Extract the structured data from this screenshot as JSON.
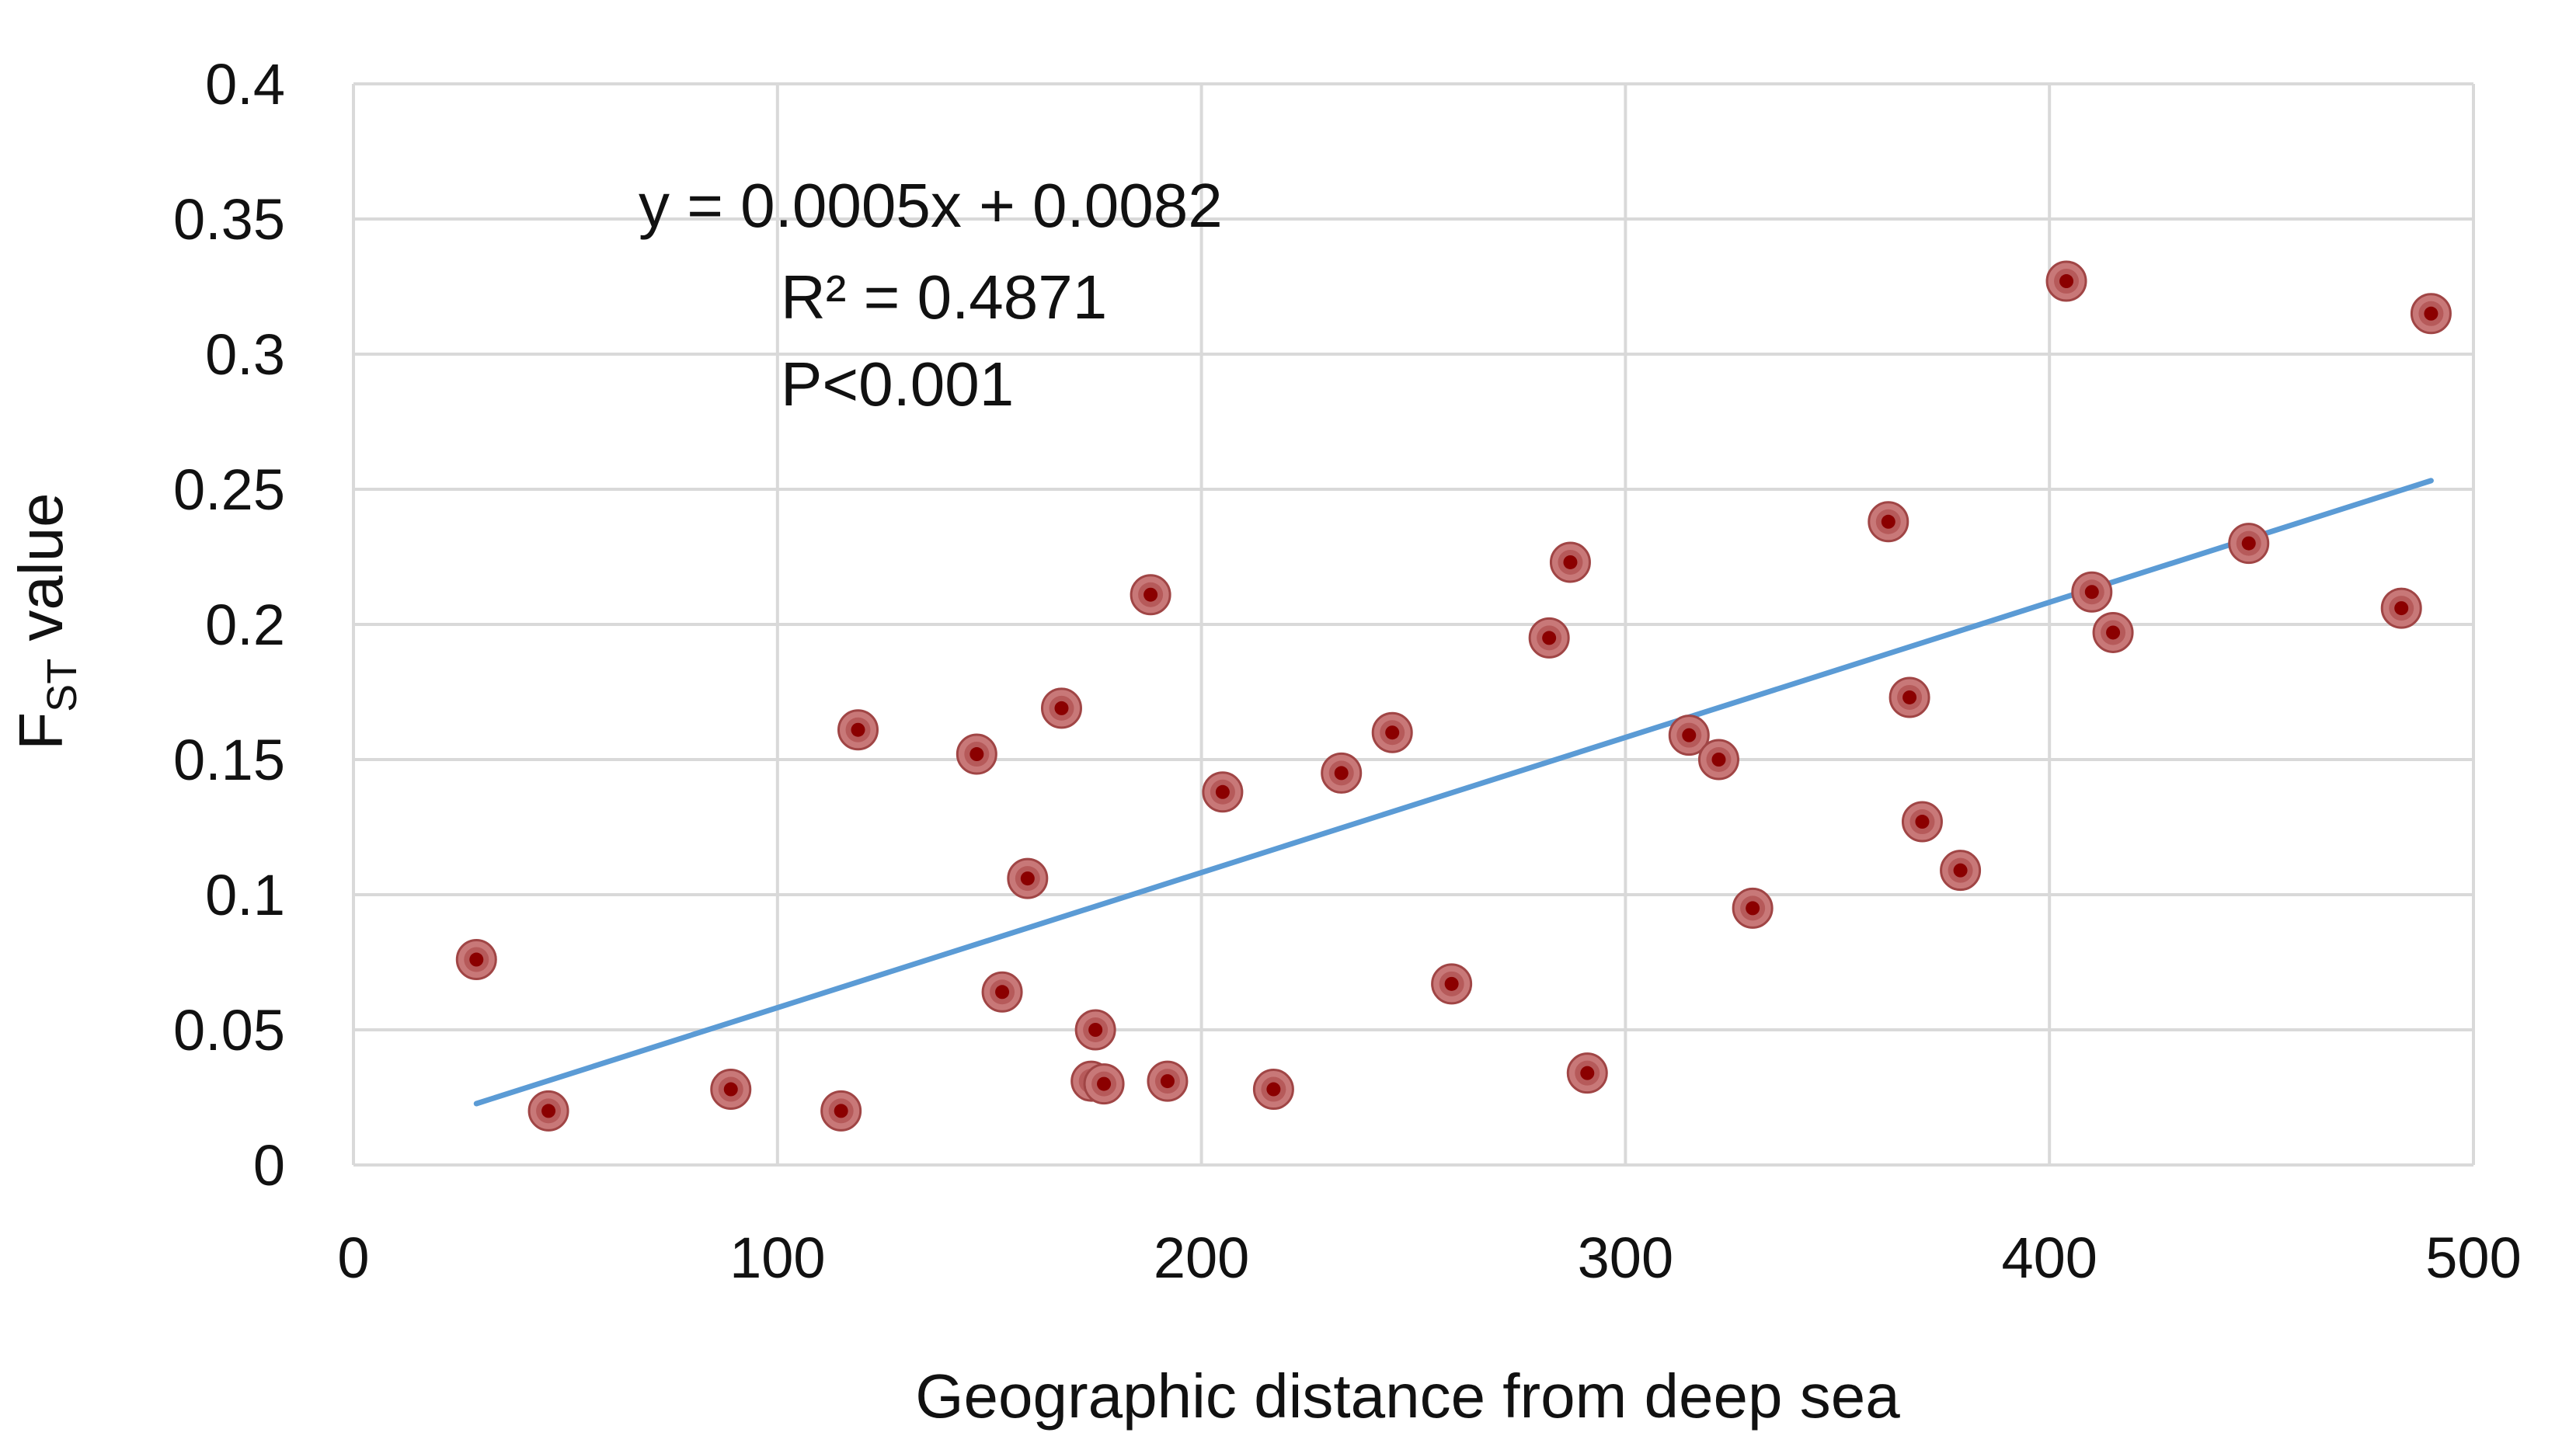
{
  "chart_data": {
    "type": "scatter",
    "xlabel": "Geographic distance from deep sea",
    "ylabel": {
      "main": "F",
      "subscript": "ST",
      "suffix": " value"
    },
    "xlim": [
      0,
      500
    ],
    "ylim": [
      0,
      0.4
    ],
    "x_ticks": [
      "0",
      "100",
      "200",
      "300",
      "400",
      "500"
    ],
    "y_ticks": [
      "0",
      "0.05",
      "0.1",
      "0.15",
      "0.2",
      "0.25",
      "0.3",
      "0.35",
      "0.4"
    ],
    "grid": true,
    "legend": "none",
    "marker_color": "#8b0000",
    "marker_halo_color": "#c87878",
    "trendline_color": "#5b9bd5",
    "trendline": {
      "slope": 0.0005,
      "intercept": 0.0082,
      "x_range": [
        29,
        490
      ]
    },
    "annotations": {
      "equation": "y = 0.0005x + 0.0082",
      "r_squared": "R² = 0.4871",
      "p_value": "P<0.001"
    },
    "points": [
      {
        "x": 29,
        "y": 0.076
      },
      {
        "x": 46,
        "y": 0.02
      },
      {
        "x": 89,
        "y": 0.028
      },
      {
        "x": 115,
        "y": 0.02
      },
      {
        "x": 119,
        "y": 0.161
      },
      {
        "x": 147,
        "y": 0.152
      },
      {
        "x": 153,
        "y": 0.064
      },
      {
        "x": 159,
        "y": 0.106
      },
      {
        "x": 167,
        "y": 0.169
      },
      {
        "x": 174,
        "y": 0.031
      },
      {
        "x": 175,
        "y": 0.05
      },
      {
        "x": 177,
        "y": 0.03
      },
      {
        "x": 188,
        "y": 0.211
      },
      {
        "x": 192,
        "y": 0.031
      },
      {
        "x": 205,
        "y": 0.138
      },
      {
        "x": 217,
        "y": 0.028
      },
      {
        "x": 233,
        "y": 0.145
      },
      {
        "x": 245,
        "y": 0.16
      },
      {
        "x": 259,
        "y": 0.067
      },
      {
        "x": 282,
        "y": 0.195
      },
      {
        "x": 287,
        "y": 0.223
      },
      {
        "x": 291,
        "y": 0.034
      },
      {
        "x": 315,
        "y": 0.159
      },
      {
        "x": 322,
        "y": 0.15
      },
      {
        "x": 330,
        "y": 0.095
      },
      {
        "x": 362,
        "y": 0.238
      },
      {
        "x": 367,
        "y": 0.173
      },
      {
        "x": 370,
        "y": 0.127
      },
      {
        "x": 379,
        "y": 0.109
      },
      {
        "x": 404,
        "y": 0.327
      },
      {
        "x": 410,
        "y": 0.212
      },
      {
        "x": 415,
        "y": 0.197
      },
      {
        "x": 447,
        "y": 0.23
      },
      {
        "x": 483,
        "y": 0.206
      },
      {
        "x": 490,
        "y": 0.315
      }
    ]
  }
}
